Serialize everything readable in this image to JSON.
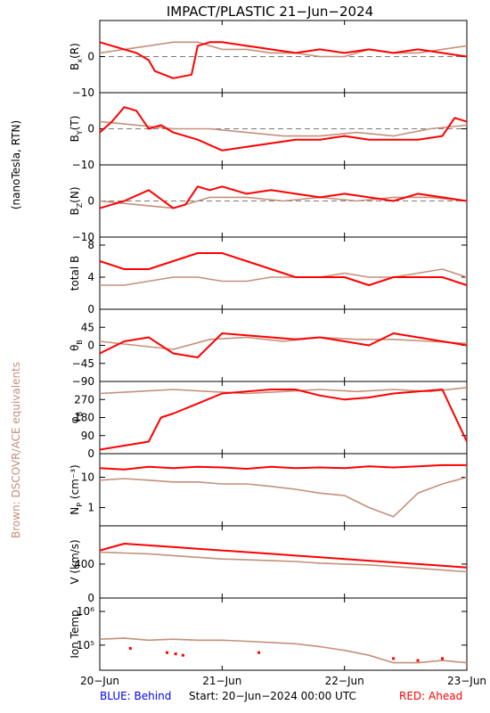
{
  "title": "IMPACT/PLASTIC   21−Jun−2024",
  "left_label_main": "(nanoTesla, RTN)",
  "left_label_brown": "Brown: DSCOVR/ACE equivalents",
  "footer": {
    "behind": "BLUE: Behind",
    "start": "Start: 20−Jun−2024 00:00 UTC",
    "ahead": "RED: Ahead"
  },
  "colors": {
    "ahead": "#ff0000",
    "dscovr": "#c4907a",
    "behind": "#0000ff",
    "zero_line": "#7a7a7a"
  },
  "chart_data": {
    "type": "line",
    "x_tick_labels": [
      "20−Jun",
      "21−Jun",
      "22−Jun",
      "23−Jun"
    ],
    "x_days": [
      0,
      1,
      2,
      3
    ],
    "panels": [
      {
        "id": "bx",
        "ylabel": "B",
        "ysub": "x",
        "ysuffix": "(R)",
        "ylim": [
          -10,
          10
        ],
        "ticks": [
          0,
          -10
        ],
        "tick_labels": [
          "0",
          "−10"
        ],
        "zero_line": true,
        "scale": "linear",
        "series": [
          {
            "name": "Ahead",
            "x": [
              0,
              0.1,
              0.2,
              0.3,
              0.4,
              0.45,
              0.6,
              0.75,
              0.8,
              0.9,
              1.0,
              1.2,
              1.4,
              1.6,
              1.8,
              2.0,
              2.2,
              2.4,
              2.6,
              2.8,
              3.0
            ],
            "y": [
              4,
              3,
              2,
              1,
              -1,
              -4,
              -6,
              -5,
              3,
              4,
              4,
              3,
              2,
              1,
              2,
              1,
              2,
              1,
              2,
              1,
              0
            ]
          },
          {
            "name": "DSCOVR/ACE",
            "x": [
              0,
              0.2,
              0.4,
              0.6,
              0.8,
              1.0,
              1.2,
              1.4,
              1.6,
              1.8,
              2.0,
              2.2,
              2.4,
              2.6,
              2.8,
              3.0
            ],
            "y": [
              1,
              2,
              3,
              4,
              4,
              2,
              2,
              1,
              1,
              0,
              0,
              2,
              1,
              1,
              2,
              3
            ]
          }
        ]
      },
      {
        "id": "by",
        "ylabel": "B",
        "ysub": "Y",
        "ysuffix": "(T)",
        "ylim": [
          -10,
          10
        ],
        "ticks": [
          0,
          -10
        ],
        "tick_labels": [
          "0",
          "−10"
        ],
        "zero_line": true,
        "scale": "linear",
        "series": [
          {
            "name": "Ahead",
            "x": [
              0,
              0.1,
              0.2,
              0.3,
              0.4,
              0.5,
              0.6,
              0.8,
              1.0,
              1.2,
              1.4,
              1.6,
              1.8,
              2.0,
              2.2,
              2.4,
              2.6,
              2.8,
              2.9,
              3.0
            ],
            "y": [
              -1,
              2,
              6,
              5,
              0,
              1,
              -1,
              -3,
              -6,
              -5,
              -4,
              -3,
              -3,
              -2,
              -3,
              -3,
              -3,
              -2,
              3,
              2
            ]
          },
          {
            "name": "DSCOVR/ACE",
            "x": [
              0,
              0.3,
              0.6,
              0.9,
              1.2,
              1.5,
              1.8,
              2.1,
              2.4,
              2.7,
              3.0
            ],
            "y": [
              2,
              1,
              0,
              0,
              -1,
              -2,
              -2,
              -1,
              -2,
              0,
              1
            ]
          }
        ]
      },
      {
        "id": "bz",
        "ylabel": "B",
        "ysub": "Z",
        "ysuffix": "(N)",
        "ylim": [
          -10,
          10
        ],
        "ticks": [
          0,
          -10
        ],
        "tick_labels": [
          "0",
          "−10"
        ],
        "zero_line": true,
        "scale": "linear",
        "series": [
          {
            "name": "Ahead",
            "x": [
              0,
              0.2,
              0.4,
              0.6,
              0.7,
              0.8,
              0.9,
              1.0,
              1.2,
              1.4,
              1.6,
              1.8,
              2.0,
              2.2,
              2.4,
              2.6,
              2.8,
              3.0
            ],
            "y": [
              -2,
              0,
              3,
              -2,
              -1,
              4,
              3,
              4,
              2,
              3,
              2,
              1,
              2,
              1,
              0,
              2,
              1,
              0
            ]
          },
          {
            "name": "DSCOVR/ACE",
            "x": [
              0,
              0.3,
              0.6,
              0.9,
              1.2,
              1.5,
              1.8,
              2.1,
              2.4,
              2.7,
              3.0
            ],
            "y": [
              0,
              -1,
              -2,
              1,
              1,
              0,
              1,
              0,
              1,
              1,
              0
            ]
          }
        ]
      },
      {
        "id": "btot",
        "ylabel": "total B",
        "ysub": "",
        "ysuffix": "",
        "ylim": [
          0,
          9
        ],
        "ticks": [
          8,
          4,
          0
        ],
        "tick_labels": [
          "8",
          "4",
          "0"
        ],
        "zero_line": false,
        "scale": "linear",
        "series": [
          {
            "name": "Ahead",
            "x": [
              0,
              0.2,
              0.4,
              0.6,
              0.8,
              1.0,
              1.2,
              1.4,
              1.6,
              1.8,
              2.0,
              2.2,
              2.4,
              2.6,
              2.8,
              3.0
            ],
            "y": [
              6,
              5,
              5,
              6,
              7,
              7,
              6,
              5,
              4,
              4,
              4,
              3,
              4,
              4,
              4,
              3
            ]
          },
          {
            "name": "DSCOVR/ACE",
            "x": [
              0,
              0.2,
              0.4,
              0.6,
              0.8,
              1.0,
              1.2,
              1.4,
              1.6,
              1.8,
              2.0,
              2.2,
              2.4,
              2.6,
              2.8,
              3.0
            ],
            "y": [
              3,
              3,
              3.5,
              4,
              4,
              3.5,
              3.5,
              4,
              4,
              4,
              4.5,
              4,
              4,
              4.5,
              5,
              4
            ]
          }
        ]
      },
      {
        "id": "theta",
        "ylabel": "θ",
        "ysub": "B",
        "ysuffix": "",
        "ylim": [
          -90,
          90
        ],
        "ticks": [
          45,
          0,
          -45,
          -90
        ],
        "tick_labels": [
          "45",
          "0",
          "−45",
          "−90"
        ],
        "zero_line": false,
        "scale": "linear",
        "series": [
          {
            "name": "Ahead",
            "x": [
              0,
              0.2,
              0.4,
              0.6,
              0.8,
              1.0,
              1.2,
              1.4,
              1.6,
              1.8,
              2.0,
              2.2,
              2.4,
              2.6,
              2.8,
              3.0
            ],
            "y": [
              -20,
              10,
              20,
              -20,
              -30,
              30,
              25,
              20,
              15,
              20,
              10,
              0,
              30,
              20,
              10,
              0
            ]
          },
          {
            "name": "DSCOVR/ACE",
            "x": [
              0,
              0.3,
              0.6,
              0.9,
              1.2,
              1.5,
              1.8,
              2.1,
              2.4,
              2.7,
              3.0
            ],
            "y": [
              10,
              0,
              -10,
              15,
              20,
              10,
              20,
              15,
              15,
              10,
              5
            ]
          }
        ]
      },
      {
        "id": "phi",
        "ylabel": "φ",
        "ysub": "B",
        "ysuffix": "",
        "ylim": [
          0,
          360
        ],
        "ticks": [
          270,
          180,
          90,
          0
        ],
        "tick_labels": [
          "270",
          "180",
          "90",
          "0"
        ],
        "zero_line": false,
        "scale": "linear",
        "series": [
          {
            "name": "Ahead",
            "x": [
              0,
              0.2,
              0.4,
              0.5,
              0.6,
              0.8,
              1.0,
              1.2,
              1.4,
              1.6,
              1.8,
              2.0,
              2.2,
              2.4,
              2.6,
              2.8,
              3.0
            ],
            "y": [
              20,
              40,
              60,
              180,
              200,
              250,
              300,
              310,
              320,
              320,
              290,
              270,
              280,
              300,
              310,
              320,
              60
            ]
          },
          {
            "name": "DSCOVR/ACE",
            "x": [
              0,
              0.3,
              0.6,
              0.9,
              1.2,
              1.5,
              1.8,
              2.1,
              2.4,
              2.7,
              3.0
            ],
            "y": [
              300,
              310,
              320,
              310,
              300,
              310,
              320,
              310,
              320,
              310,
              330
            ]
          }
        ]
      },
      {
        "id": "np",
        "ylabel": "N",
        "ysub": "P",
        "ysuffix": " (cm⁻³)",
        "ylim": [
          0.25,
          60
        ],
        "ticks": [
          10,
          1
        ],
        "tick_labels": [
          "10",
          "1"
        ],
        "zero_line": false,
        "scale": "log",
        "series": [
          {
            "name": "Ahead",
            "x": [
              0,
              0.2,
              0.4,
              0.6,
              0.8,
              1.0,
              1.2,
              1.4,
              1.6,
              1.8,
              2.0,
              2.2,
              2.4,
              2.6,
              2.8,
              3.0
            ],
            "y": [
              20,
              18,
              22,
              20,
              22,
              21,
              19,
              22,
              20,
              21,
              20,
              23,
              21,
              23,
              25,
              25
            ]
          },
          {
            "name": "DSCOVR/ACE",
            "x": [
              0,
              0.2,
              0.4,
              0.6,
              0.8,
              1.0,
              1.2,
              1.4,
              1.6,
              1.8,
              2.0,
              2.2,
              2.4,
              2.6,
              2.8,
              3.0
            ],
            "y": [
              8,
              9,
              8,
              7,
              7,
              6,
              6,
              5,
              4,
              3,
              2.5,
              1,
              0.5,
              3,
              6,
              10
            ]
          }
        ]
      },
      {
        "id": "v",
        "ylabel": "V (km/s)",
        "ysub": "",
        "ysuffix": "",
        "ylim": [
          0,
          850
        ],
        "ticks": [
          400,
          0
        ],
        "tick_labels": [
          "400",
          "0"
        ],
        "zero_line": false,
        "scale": "linear",
        "series": [
          {
            "name": "Ahead",
            "x": [
              0,
              0.2,
              0.4,
              0.6,
              0.8,
              1.0,
              1.2,
              1.4,
              1.6,
              1.8,
              2.0,
              2.2,
              2.4,
              2.6,
              2.8,
              3.0
            ],
            "y": [
              560,
              640,
              620,
              600,
              580,
              560,
              540,
              520,
              500,
              480,
              460,
              440,
              420,
              400,
              380,
              360
            ]
          },
          {
            "name": "DSCOVR/ACE",
            "x": [
              0,
              0.2,
              0.4,
              0.6,
              0.8,
              1.0,
              1.2,
              1.4,
              1.6,
              1.8,
              2.0,
              2.2,
              2.4,
              2.6,
              2.8,
              3.0
            ],
            "y": [
              540,
              530,
              520,
              500,
              480,
              460,
              450,
              440,
              430,
              410,
              400,
              390,
              370,
              350,
              330,
              310
            ]
          }
        ]
      },
      {
        "id": "temp",
        "ylabel": "Ion Temp",
        "ysub": "",
        "ysuffix": "",
        "ylim": [
          18000,
          2500000
        ],
        "ticks": [
          1000000,
          100000
        ],
        "tick_labels": [
          "10⁶",
          "10⁵"
        ],
        "zero_line": false,
        "scale": "log",
        "series": [
          {
            "name": "Ahead",
            "x": [
              0.25,
              0.55,
              0.62,
              0.68,
              1.3,
              2.4,
              2.6,
              2.8
            ],
            "y": [
              80000,
              60000,
              55000,
              50000,
              60000,
              40000,
              35000,
              40000
            ]
          },
          {
            "name": "DSCOVR/ACE",
            "x": [
              0,
              0.2,
              0.4,
              0.6,
              0.8,
              1.0,
              1.2,
              1.4,
              1.6,
              1.8,
              2.0,
              2.2,
              2.4,
              2.6,
              2.8,
              3.0
            ],
            "y": [
              150000,
              160000,
              140000,
              150000,
              140000,
              140000,
              130000,
              120000,
              110000,
              90000,
              70000,
              50000,
              30000,
              30000,
              35000,
              30000
            ]
          }
        ]
      }
    ]
  }
}
